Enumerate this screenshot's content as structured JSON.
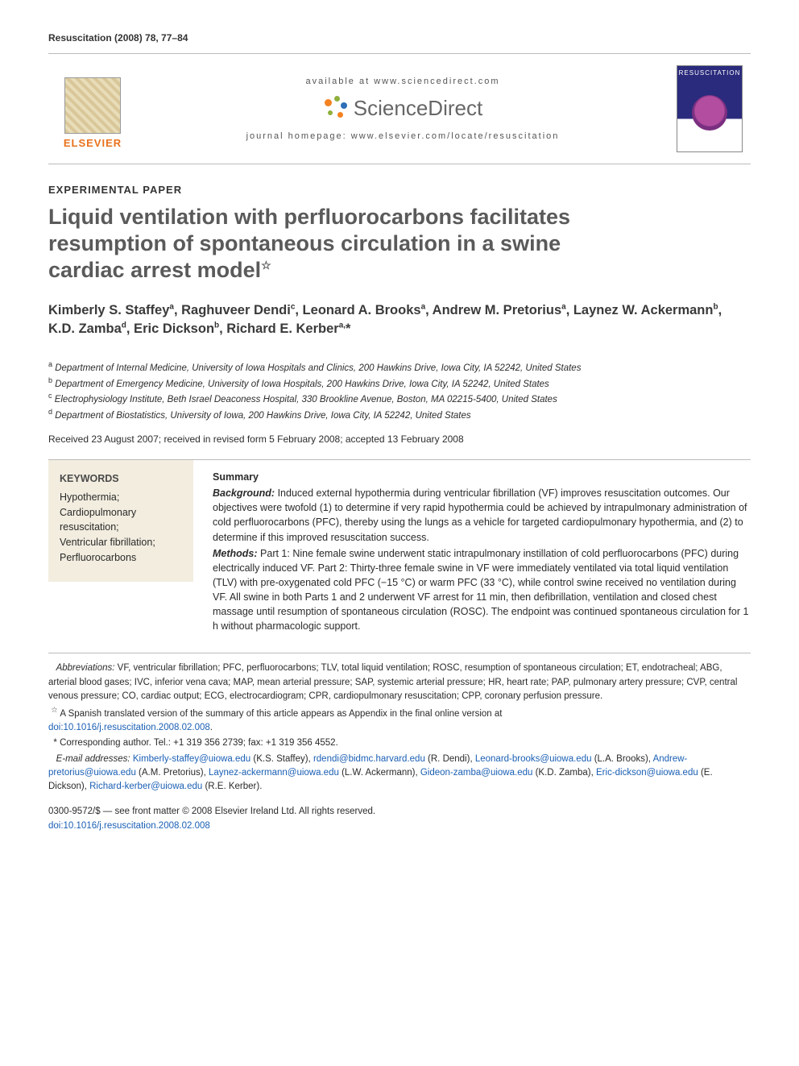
{
  "running_head": "Resuscitation (2008) 78, 77–84",
  "header": {
    "available_at": "available at www.sciencedirect.com",
    "sd_brand": "ScienceDirect",
    "journal_homepage_label": "journal homepage: www.elsevier.com/locate/resuscitation",
    "elsevier_word": "ELSEVIER",
    "cover_title": "RESUSCITATION"
  },
  "section_label": "EXPERIMENTAL PAPER",
  "title_lines": [
    "Liquid ventilation with perfluorocarbons facilitates",
    "resumption of spontaneous circulation in a swine",
    "cardiac arrest model"
  ],
  "title_footnote_mark": "☆",
  "authors_html": "Kimberly S. Staffey<sup>a</sup>, Raghuveer Dendi<sup>c</sup>, Leonard A. Brooks<sup>a</sup>, Andrew M. Pretorius<sup>a</sup>, Laynez W. Ackermann<sup>b</sup>, K.D. Zamba<sup>d</sup>, Eric Dickson<sup>b</sup>, Richard E. Kerber<sup>a,</sup>*",
  "affiliations": [
    {
      "mark": "a",
      "text": "Department of Internal Medicine, University of Iowa Hospitals and Clinics, 200 Hawkins Drive, Iowa City, IA 52242, United States"
    },
    {
      "mark": "b",
      "text": "Department of Emergency Medicine, University of Iowa Hospitals, 200 Hawkins Drive, Iowa City, IA 52242, United States"
    },
    {
      "mark": "c",
      "text": "Electrophysiology Institute, Beth Israel Deaconess Hospital, 330 Brookline Avenue, Boston, MA 02215-5400, United States"
    },
    {
      "mark": "d",
      "text": "Department of Biostatistics, University of Iowa, 200 Hawkins Drive, Iowa City, IA 52242, United States"
    }
  ],
  "dates": "Received 23 August 2007; received in revised form 5 February 2008; accepted 13 February 2008",
  "keywords": {
    "head": "KEYWORDS",
    "items": [
      "Hypothermia;",
      "Cardiopulmonary resuscitation;",
      "Ventricular fibrillation;",
      "Perfluorocarbons"
    ]
  },
  "summary": {
    "head": "Summary",
    "background_lead": "Background:",
    "background": " Induced external hypothermia during ventricular fibrillation (VF) improves resuscitation outcomes. Our objectives were twofold (1) to determine if very rapid hypothermia could be achieved by intrapulmonary administration of cold perfluorocarbons (PFC), thereby using the lungs as a vehicle for targeted cardiopulmonary hypothermia, and (2) to determine if this improved resuscitation success.",
    "methods_lead": "Methods:",
    "methods": " Part 1: Nine female swine underwent static intrapulmonary instillation of cold perfluorocarbons (PFC) during electrically induced VF. Part 2: Thirty-three female swine in VF were immediately ventilated via total liquid ventilation (TLV) with pre-oxygenated cold PFC (−15 °C) or warm PFC (33 °C), while control swine received no ventilation during VF. All swine in both Parts 1 and 2 underwent VF arrest for 11 min, then defibrillation, ventilation and closed chest massage until resumption of spontaneous circulation (ROSC). The endpoint was continued spontaneous circulation for 1 h without pharmacologic support."
  },
  "footnotes": {
    "abbrev_lead": "Abbreviations:",
    "abbrev": " VF, ventricular fibrillation; PFC, perfluorocarbons; TLV, total liquid ventilation; ROSC, resumption of spontaneous circulation; ET, endotracheal; ABG, arterial blood gases; IVC, inferior vena cava; MAP, mean arterial pressure; SAP, systemic arterial pressure; HR, heart rate; PAP, pulmonary artery pressure; CVP, central venous pressure; CO, cardiac output; ECG, electrocardiogram; CPR, cardiopulmonary resuscitation; CPP, coronary perfusion pressure.",
    "star_mark": "☆",
    "star_text": " A Spanish translated version of the summary of this article appears as Appendix in the final online version at",
    "star_doi": "doi:10.1016/j.resuscitation.2008.02.008",
    "star_doi_suffix": ".",
    "corr_mark": "*",
    "corr_text": " Corresponding author. Tel.: +1 319 356 2739; fax: +1 319 356 4552.",
    "email_lead": "E-mail addresses:",
    "emails": [
      {
        "email": "Kimberly-staffey@uiowa.edu",
        "who": " (K.S. Staffey), "
      },
      {
        "email": "rdendi@bidmc.harvard.edu",
        "who": " (R. Dendi), "
      },
      {
        "email": "Leonard-brooks@uiowa.edu",
        "who": " (L.A. Brooks), "
      },
      {
        "email": "Andrew-pretorius@uiowa.edu",
        "who": " (A.M. Pretorius), "
      },
      {
        "email": "Laynez-ackermann@uiowa.edu",
        "who": " (L.W. Ackermann), "
      },
      {
        "email": "Gideon-zamba@uiowa.edu",
        "who": " (K.D. Zamba), "
      },
      {
        "email": "Eric-dickson@uiowa.edu",
        "who": " (E. Dickson), "
      },
      {
        "email": "Richard-kerber@uiowa.edu",
        "who": " (R.E. Kerber)."
      }
    ]
  },
  "copyright": {
    "line1": "0300-9572/$ — see front matter © 2008 Elsevier Ireland Ltd. All rights reserved.",
    "doi": "doi:10.1016/j.resuscitation.2008.02.008"
  },
  "colors": {
    "elsevier_orange": "#e9711c",
    "link_blue": "#1a5fb4",
    "keywords_bg": "#f2eddf",
    "title_gray": "#5a5a5a"
  }
}
